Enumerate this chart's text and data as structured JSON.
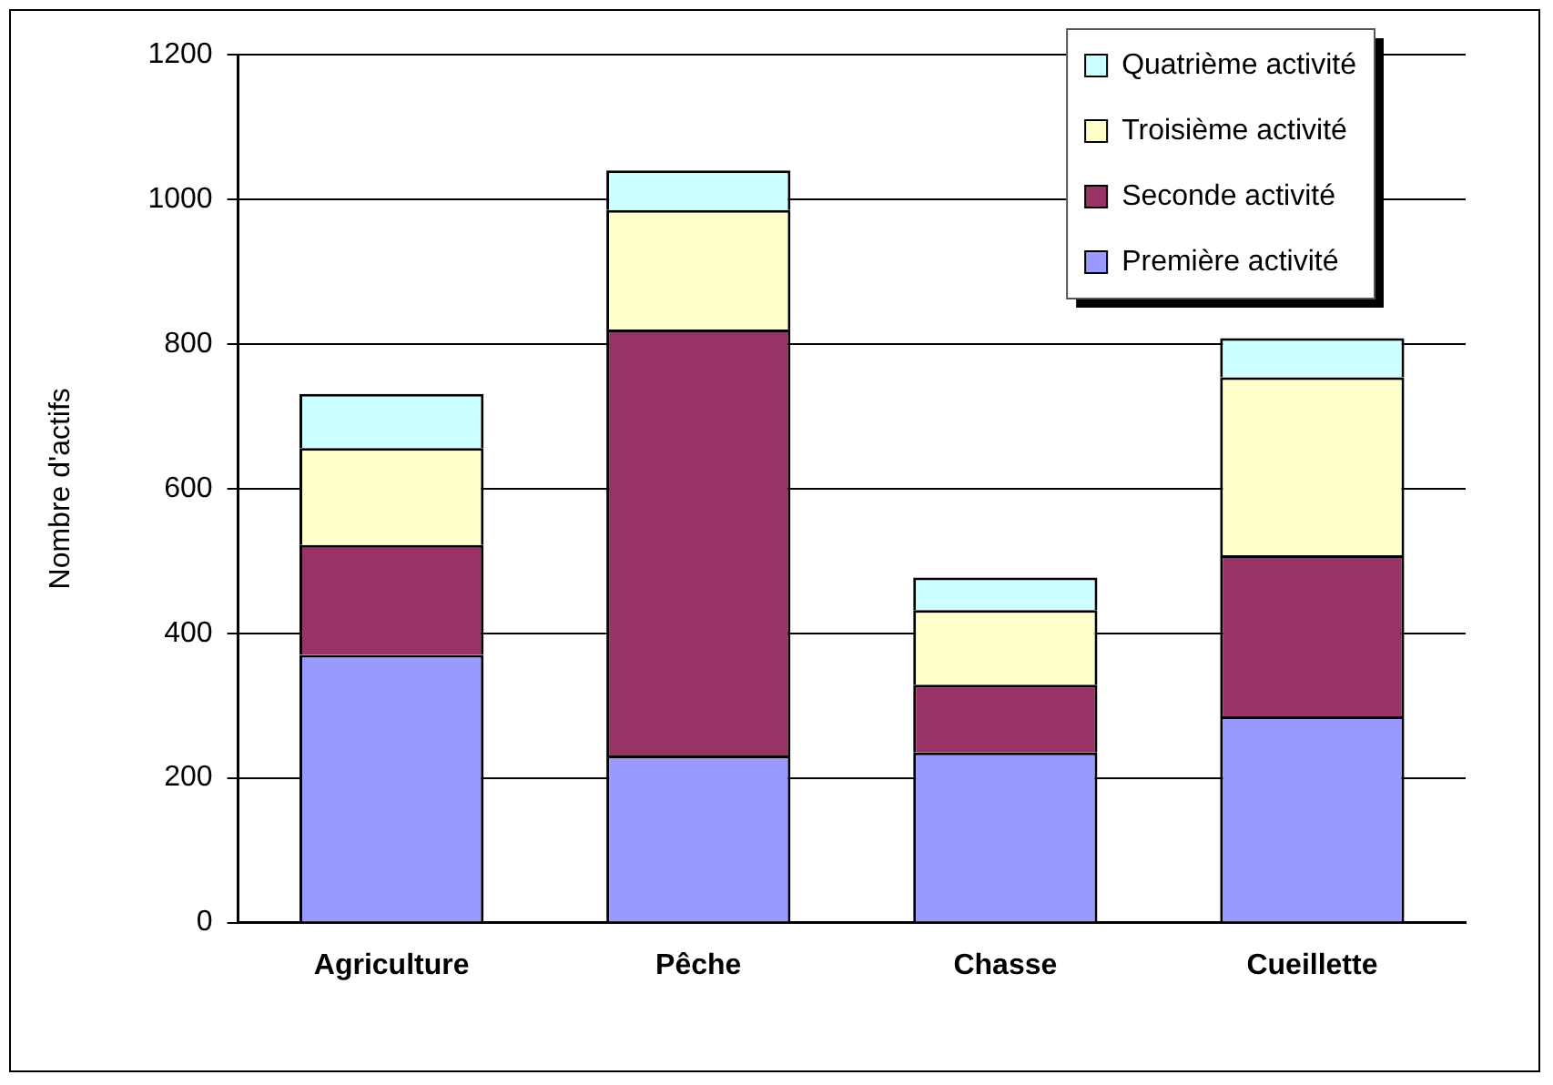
{
  "chart_data": {
    "type": "bar",
    "stacked": true,
    "ylabel": "Nombre d'actifs",
    "categories": [
      "Agriculture",
      "Pêche",
      "Chasse",
      "Cueillette"
    ],
    "series": [
      {
        "name": "Première activité",
        "color": "#9999ff",
        "values": [
          370,
          231,
          235,
          285
        ]
      },
      {
        "name": "Seconde activité",
        "color": "#993366",
        "values": [
          152,
          589,
          94,
          223
        ]
      },
      {
        "name": "Troisième activité",
        "color": "#ffffcc",
        "values": [
          134,
          165,
          103,
          246
        ]
      },
      {
        "name": "Quatrième activité",
        "color": "#ccffff",
        "values": [
          75,
          55,
          45,
          54
        ]
      }
    ],
    "ylim": [
      0,
      1200
    ],
    "yticks": [
      0,
      200,
      400,
      600,
      800,
      1000,
      1200
    ],
    "grid": "y",
    "legend": "top right"
  }
}
